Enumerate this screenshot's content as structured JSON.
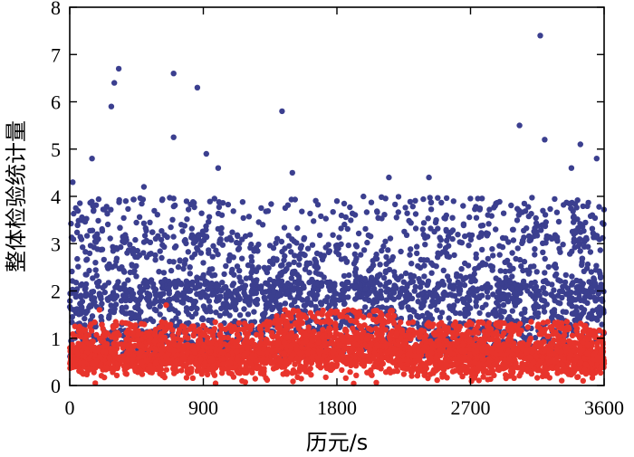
{
  "chart_data": {
    "type": "scatter",
    "title": "",
    "xlabel": "历元/s",
    "ylabel": "整体检验统计量",
    "xlim": [
      0,
      3600
    ],
    "ylim": [
      0,
      8
    ],
    "x_ticks": [
      "0",
      "900",
      "1800",
      "2700",
      "3600"
    ],
    "y_ticks": [
      "0",
      "1",
      "2",
      "3",
      "4",
      "5",
      "6",
      "7",
      "8"
    ],
    "grid": false,
    "legend": "none",
    "series": [
      {
        "color": "#3b3f8f",
        "points": [
          [
            20,
            4.3
          ],
          [
            280,
            5.9
          ],
          [
            300,
            6.4
          ],
          [
            330,
            6.7
          ],
          [
            700,
            6.6
          ],
          [
            700,
            5.25
          ],
          [
            860,
            6.3
          ],
          [
            920,
            4.9
          ],
          [
            1000,
            4.6
          ],
          [
            1430,
            5.8
          ],
          [
            1500,
            4.5
          ],
          [
            2150,
            4.4
          ],
          [
            2420,
            4.4
          ],
          [
            3030,
            5.5
          ],
          [
            3170,
            7.4
          ],
          [
            3200,
            5.2
          ],
          [
            3440,
            5.1
          ],
          [
            3550,
            4.8
          ],
          [
            150,
            4.8
          ],
          [
            500,
            4.2
          ],
          [
            1300,
            3.4
          ],
          [
            1800,
            3.9
          ],
          [
            2650,
            3.8
          ],
          [
            3380,
            4.6
          ]
        ]
      },
      {
        "color": "#e8342c",
        "points": [
          [
            200,
            1.6
          ],
          [
            650,
            1.7
          ],
          [
            1450,
            1.6
          ],
          [
            1700,
            1.5
          ],
          [
            2100,
            1.4
          ],
          [
            3350,
            1.35
          ]
        ]
      }
    ]
  }
}
